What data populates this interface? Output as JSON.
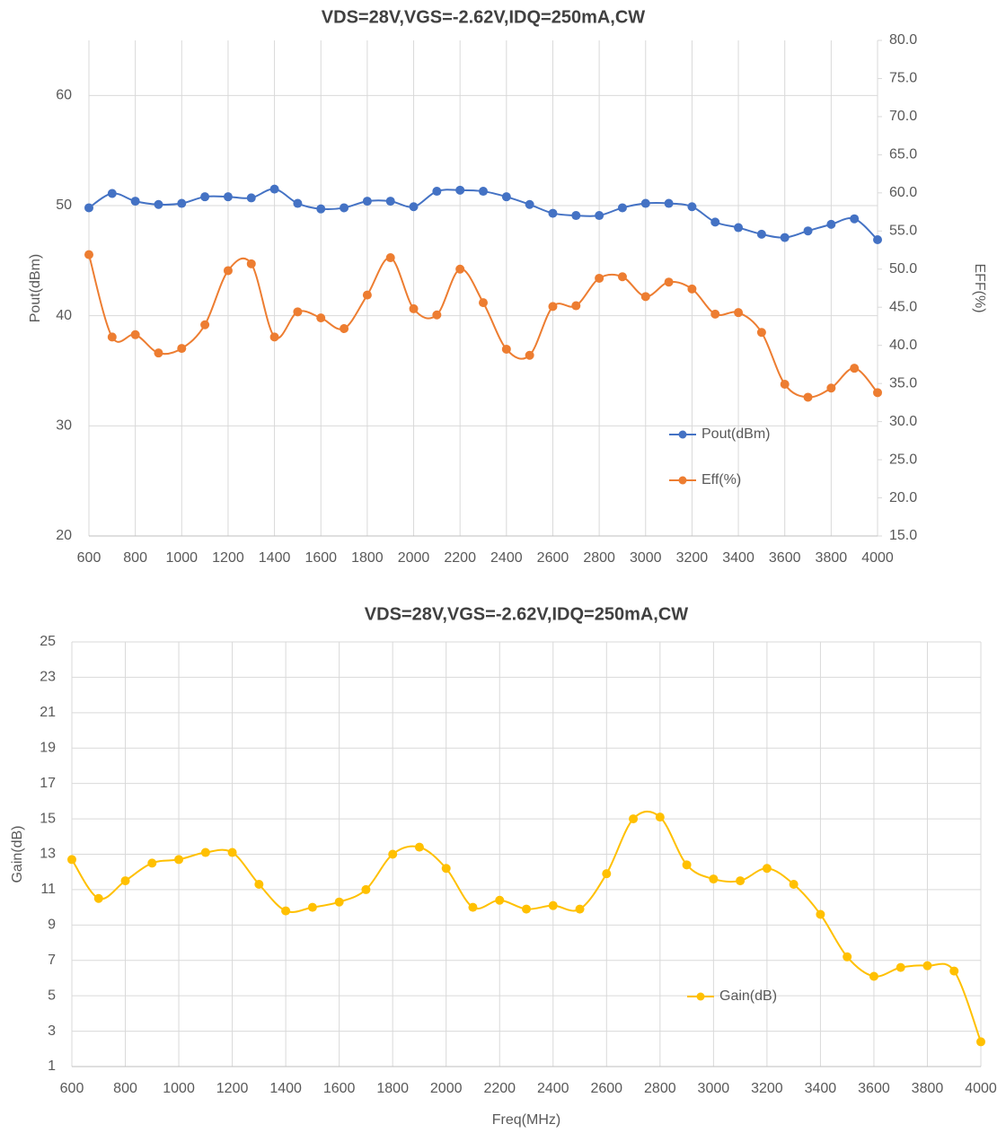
{
  "chart_data": [
    {
      "type": "line",
      "title": "VDS=28V,VGS=-2.62V,IDQ=250mA,CW",
      "y_label": "Pout(dBm)",
      "y2_label": "EFF(%)",
      "x": [
        600,
        700,
        800,
        900,
        1000,
        1100,
        1200,
        1300,
        1400,
        1500,
        1600,
        1700,
        1800,
        1900,
        2000,
        2100,
        2200,
        2300,
        2400,
        2500,
        2600,
        2700,
        2800,
        2900,
        3000,
        3100,
        3200,
        3300,
        3400,
        3500,
        3600,
        3700,
        3800,
        3900,
        4000
      ],
      "xlim": [
        600,
        4000
      ],
      "xticks": [
        600,
        800,
        1000,
        1200,
        1400,
        1600,
        1800,
        2000,
        2200,
        2400,
        2600,
        2800,
        3000,
        3200,
        3400,
        3600,
        3800,
        4000
      ],
      "ylim": [
        20,
        65
      ],
      "yticks": [
        20,
        30,
        40,
        50,
        60
      ],
      "y2lim": [
        15,
        80
      ],
      "y2ticks": [
        {
          "value": 15,
          "label": "15.0"
        },
        {
          "value": 20,
          "label": "20.0"
        },
        {
          "value": 25,
          "label": "25.0"
        },
        {
          "value": 30,
          "label": "30.0"
        },
        {
          "value": 35,
          "label": "35.0"
        },
        {
          "value": 40,
          "label": "40.0"
        },
        {
          "value": 45,
          "label": "45.0"
        },
        {
          "value": 50,
          "label": "50.0"
        },
        {
          "value": 55,
          "label": "55.0"
        },
        {
          "value": 60,
          "label": "60.0"
        },
        {
          "value": 65,
          "label": "65.0"
        },
        {
          "value": 70,
          "label": "70.0"
        },
        {
          "value": 75,
          "label": "75.0"
        },
        {
          "value": 80,
          "label": "80.0"
        }
      ],
      "grid": true,
      "legend": "lower right",
      "series": [
        {
          "name": "Pout(dBm)",
          "color": "#4472c4",
          "values": [
            49.8,
            51.1,
            50.4,
            50.1,
            50.2,
            50.8,
            50.8,
            50.7,
            51.5,
            50.2,
            49.7,
            49.8,
            50.4,
            50.4,
            49.9,
            51.3,
            51.4,
            51.3,
            50.8,
            50.1,
            49.3,
            49.1,
            49.1,
            49.8,
            50.2,
            50.2,
            49.9,
            48.5,
            48.0,
            47.4,
            47.1,
            47.7,
            48.3,
            48.8,
            46.9
          ]
        },
        {
          "name": "Eff(%)",
          "color": "#ed7d31",
          "axis": "y2",
          "values": [
            51.9,
            41.1,
            41.4,
            39.0,
            39.6,
            42.7,
            49.8,
            50.7,
            41.1,
            44.4,
            43.6,
            42.2,
            46.6,
            51.5,
            44.8,
            44.0,
            50.0,
            45.6,
            39.5,
            38.7,
            45.1,
            45.2,
            48.8,
            49.0,
            46.4,
            48.3,
            47.4,
            44.1,
            44.3,
            41.7,
            34.9,
            33.2,
            34.4,
            37.0,
            33.8
          ]
        }
      ]
    },
    {
      "type": "line",
      "title": "VDS=28V,VGS=-2.62V,IDQ=250mA,CW",
      "x_label": "Freq(MHz)",
      "y_label": "Gain(dB)",
      "x": [
        600,
        700,
        800,
        900,
        1000,
        1100,
        1200,
        1300,
        1400,
        1500,
        1600,
        1700,
        1800,
        1900,
        2000,
        2100,
        2200,
        2300,
        2400,
        2500,
        2600,
        2700,
        2800,
        2900,
        3000,
        3100,
        3200,
        3300,
        3400,
        3500,
        3600,
        3700,
        3800,
        3900,
        4000
      ],
      "xlim": [
        600,
        4000
      ],
      "xticks": [
        600,
        800,
        1000,
        1200,
        1400,
        1600,
        1800,
        2000,
        2200,
        2400,
        2600,
        2800,
        3000,
        3200,
        3400,
        3600,
        3800,
        4000
      ],
      "ylim": [
        1,
        25
      ],
      "yticks": [
        1,
        3,
        5,
        7,
        9,
        11,
        13,
        15,
        17,
        19,
        21,
        23,
        25
      ],
      "grid": true,
      "legend": "lower right",
      "series": [
        {
          "name": "Gain(dB)",
          "color": "#ffc000",
          "values": [
            12.7,
            10.5,
            11.5,
            12.5,
            12.7,
            13.1,
            13.1,
            11.3,
            9.8,
            10.0,
            10.3,
            11.0,
            13.0,
            13.4,
            12.2,
            10.0,
            10.4,
            9.9,
            10.1,
            9.9,
            11.9,
            15.0,
            15.1,
            12.4,
            11.6,
            11.5,
            12.2,
            11.3,
            9.6,
            7.2,
            6.1,
            6.6,
            6.7,
            6.4,
            2.4
          ]
        }
      ]
    }
  ]
}
